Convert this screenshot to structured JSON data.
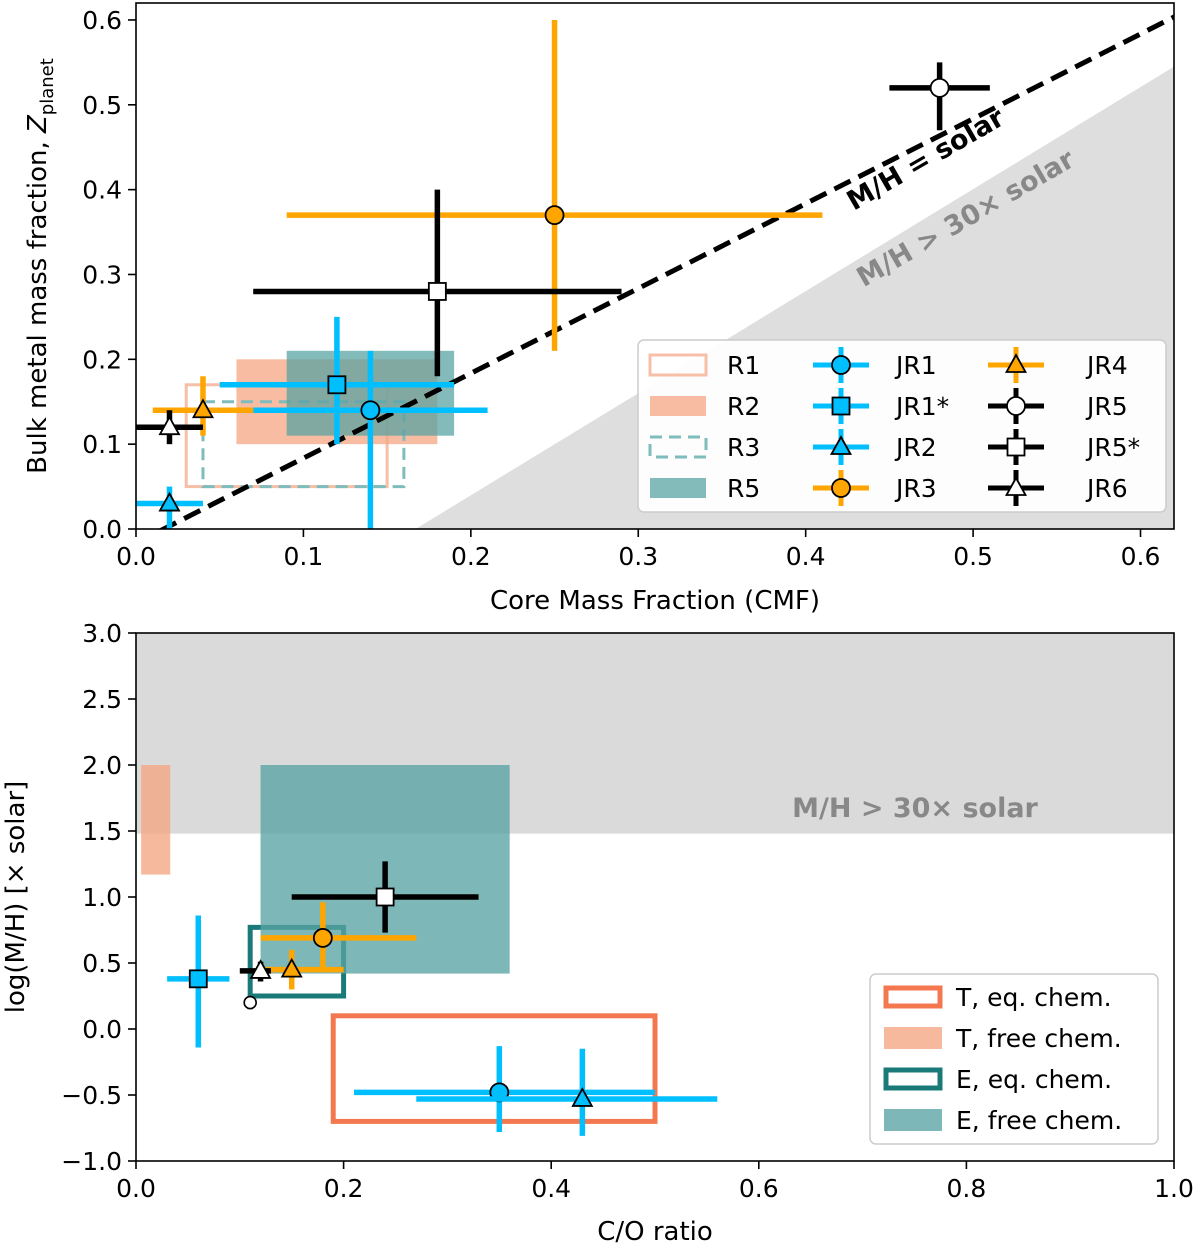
{
  "chart_data": [
    {
      "type": "scatter",
      "xlabel": "Core Mass Fraction (CMF)",
      "ylabel": "Bulk metal mass fraction, ",
      "ylabel_var": "Z",
      "ylabel_sub": "planet",
      "xlim": [
        0.0,
        0.62
      ],
      "ylim": [
        0.0,
        0.62
      ],
      "x_ticks": [
        "0.0",
        "0.1",
        "0.2",
        "0.3",
        "0.4",
        "0.5",
        "0.6"
      ],
      "y_ticks": [
        "0.0",
        "0.1",
        "0.2",
        "0.3",
        "0.4",
        "0.5",
        "0.6"
      ],
      "annotations": [
        {
          "text": "M/H = solar",
          "color": "#000000"
        },
        {
          "text": "M/H  >  30× solar",
          "color": "#888888"
        }
      ],
      "solar_line": {
        "slope": 1.0,
        "intercept": -0.0165
      },
      "excluded_region": {
        "x_at_y0": 0.167,
        "x_at_ymax": 0.62,
        "y_at_xmax": 0.545
      },
      "regions": [
        {
          "name": "R1",
          "style": "outline",
          "color": "#f7bfa8",
          "x": [
            0.03,
            0.15
          ],
          "y": [
            0.05,
            0.17
          ]
        },
        {
          "name": "R2",
          "style": "fill",
          "color": "#f4a582",
          "x": [
            0.06,
            0.18
          ],
          "y": [
            0.1,
            0.2
          ]
        },
        {
          "name": "R3",
          "style": "dashed",
          "color": "#7fbcbc",
          "x": [
            0.04,
            0.16
          ],
          "y": [
            0.05,
            0.15
          ]
        },
        {
          "name": "R5",
          "style": "fill",
          "color": "#5aa3a3",
          "x": [
            0.09,
            0.19
          ],
          "y": [
            0.11,
            0.21
          ]
        }
      ],
      "points": [
        {
          "name": "JR1",
          "marker": "circle",
          "color": "#00bfff",
          "face": "#00bfff",
          "x": 0.14,
          "y": 0.14,
          "xerr": [
            0.07,
            0.07
          ],
          "yerr": [
            0.14,
            0.07
          ]
        },
        {
          "name": "JR1*",
          "marker": "square",
          "color": "#00bfff",
          "face": "#00bfff",
          "x": 0.12,
          "y": 0.17,
          "xerr": [
            0.07,
            0.07
          ],
          "yerr": [
            0.07,
            0.08
          ]
        },
        {
          "name": "JR2",
          "marker": "triangle",
          "color": "#00bfff",
          "face": "#00bfff",
          "x": 0.02,
          "y": 0.03,
          "xerr": [
            0.02,
            0.02
          ],
          "yerr": [
            0.03,
            0.02
          ]
        },
        {
          "name": "JR3",
          "marker": "circle",
          "color": "#ffa500",
          "face": "#ffa500",
          "x": 0.25,
          "y": 0.37,
          "xerr": [
            0.16,
            0.16
          ],
          "yerr": [
            0.16,
            0.23
          ]
        },
        {
          "name": "JR4",
          "marker": "triangle",
          "color": "#ffa500",
          "face": "#ffa500",
          "x": 0.04,
          "y": 0.14,
          "xerr": [
            0.03,
            0.03
          ],
          "yerr": [
            0.03,
            0.04
          ]
        },
        {
          "name": "JR5",
          "marker": "circle",
          "color": "#000000",
          "face": "#ffffff",
          "x": 0.48,
          "y": 0.52,
          "xerr": [
            0.03,
            0.03
          ],
          "yerr": [
            0.05,
            0.03
          ]
        },
        {
          "name": "JR5*",
          "marker": "square",
          "color": "#000000",
          "face": "#ffffff",
          "x": 0.18,
          "y": 0.28,
          "xerr": [
            0.11,
            0.11
          ],
          "yerr": [
            0.1,
            0.12
          ]
        },
        {
          "name": "JR6",
          "marker": "triangle",
          "color": "#000000",
          "face": "#ffffff",
          "x": 0.02,
          "y": 0.12,
          "xerr": [
            0.02,
            0.02
          ],
          "yerr": [
            0.02,
            0.02
          ]
        }
      ],
      "legend": {
        "placement": "lower-right",
        "entries": [
          "R1",
          "R2",
          "R3",
          "R5",
          "JR1",
          "JR1*",
          "JR2",
          "JR3",
          "JR4",
          "JR5",
          "JR5*",
          "JR6"
        ]
      }
    },
    {
      "type": "scatter",
      "xlabel": "C/O ratio",
      "ylabel": "log(M/H) [× solar]",
      "xlim": [
        0.0,
        1.0
      ],
      "ylim": [
        -1.0,
        3.0
      ],
      "x_ticks": [
        "0.0",
        "0.2",
        "0.4",
        "0.6",
        "0.8",
        "1.0"
      ],
      "y_ticks": [
        "−1.0",
        "−0.5",
        "0.0",
        "0.5",
        "1.0",
        "1.5",
        "2.0",
        "2.5",
        "3.0"
      ],
      "annotations": [
        {
          "text": "M/H  >  30× solar",
          "color": "#888888"
        }
      ],
      "excluded_region": {
        "y": [
          1.48,
          3.0
        ]
      },
      "regions": [
        {
          "name": "T, eq. chem.",
          "style": "outline",
          "color": "#f4784f",
          "x": [
            0.19,
            0.5
          ],
          "y": [
            -0.7,
            0.1
          ]
        },
        {
          "name": "T, free chem.",
          "style": "fill",
          "color": "#f4a582",
          "x": [
            0.005,
            0.033
          ],
          "y": [
            1.17,
            2.0
          ]
        },
        {
          "name": "E, eq. chem.",
          "style": "outline",
          "color": "#1a7a78",
          "x": [
            0.11,
            0.2
          ],
          "y": [
            0.25,
            0.77
          ]
        },
        {
          "name": "E, free chem.",
          "style": "fill",
          "color": "#5aa3a3",
          "x": [
            0.12,
            0.36
          ],
          "y": [
            0.42,
            2.0
          ]
        }
      ],
      "points": [
        {
          "name": "JR1",
          "marker": "circle",
          "color": "#00bfff",
          "face": "#00bfff",
          "x": 0.35,
          "y": -0.48,
          "xerr": [
            0.14,
            0.15
          ],
          "yerr": [
            0.3,
            0.35
          ]
        },
        {
          "name": "JR1*",
          "marker": "square",
          "color": "#00bfff",
          "face": "#00bfff",
          "x": 0.06,
          "y": 0.38,
          "xerr": [
            0.03,
            0.03
          ],
          "yerr": [
            0.52,
            0.48
          ]
        },
        {
          "name": "JR2",
          "marker": "triangle",
          "color": "#00bfff",
          "face": "#00bfff",
          "x": 0.43,
          "y": -0.53,
          "xerr": [
            0.16,
            0.13
          ],
          "yerr": [
            0.28,
            0.38
          ]
        },
        {
          "name": "JR3",
          "marker": "circle",
          "color": "#ffa500",
          "face": "#ffa500",
          "x": 0.18,
          "y": 0.69,
          "xerr": [
            0.06,
            0.09
          ],
          "yerr": [
            0.24,
            0.27
          ]
        },
        {
          "name": "JR4",
          "marker": "triangle",
          "color": "#ffa500",
          "face": "#ffa500",
          "x": 0.15,
          "y": 0.45,
          "xerr": [
            0.03,
            0.05
          ],
          "yerr": [
            0.15,
            0.15
          ]
        },
        {
          "name": "JR5",
          "marker": "circle-small",
          "color": "#000000",
          "face": "#ffffff",
          "x": 0.11,
          "y": 0.2,
          "xerr": [
            0.005,
            0.005
          ],
          "yerr": [
            0.05,
            0.05
          ]
        },
        {
          "name": "JR5*",
          "marker": "square",
          "color": "#000000",
          "face": "#ffffff",
          "x": 0.24,
          "y": 1.0,
          "xerr": [
            0.09,
            0.09
          ],
          "yerr": [
            0.27,
            0.27
          ]
        },
        {
          "name": "JR6",
          "marker": "triangle",
          "color": "#000000",
          "face": "#ffffff",
          "x": 0.12,
          "y": 0.44,
          "xerr": [
            0.02,
            0.01
          ],
          "yerr": [
            0.08,
            0.07
          ]
        }
      ],
      "legend": {
        "placement": "lower-right",
        "entries": [
          "T, eq. chem.",
          "T, free chem.",
          "E, eq. chem.",
          "E, free chem."
        ]
      }
    }
  ]
}
